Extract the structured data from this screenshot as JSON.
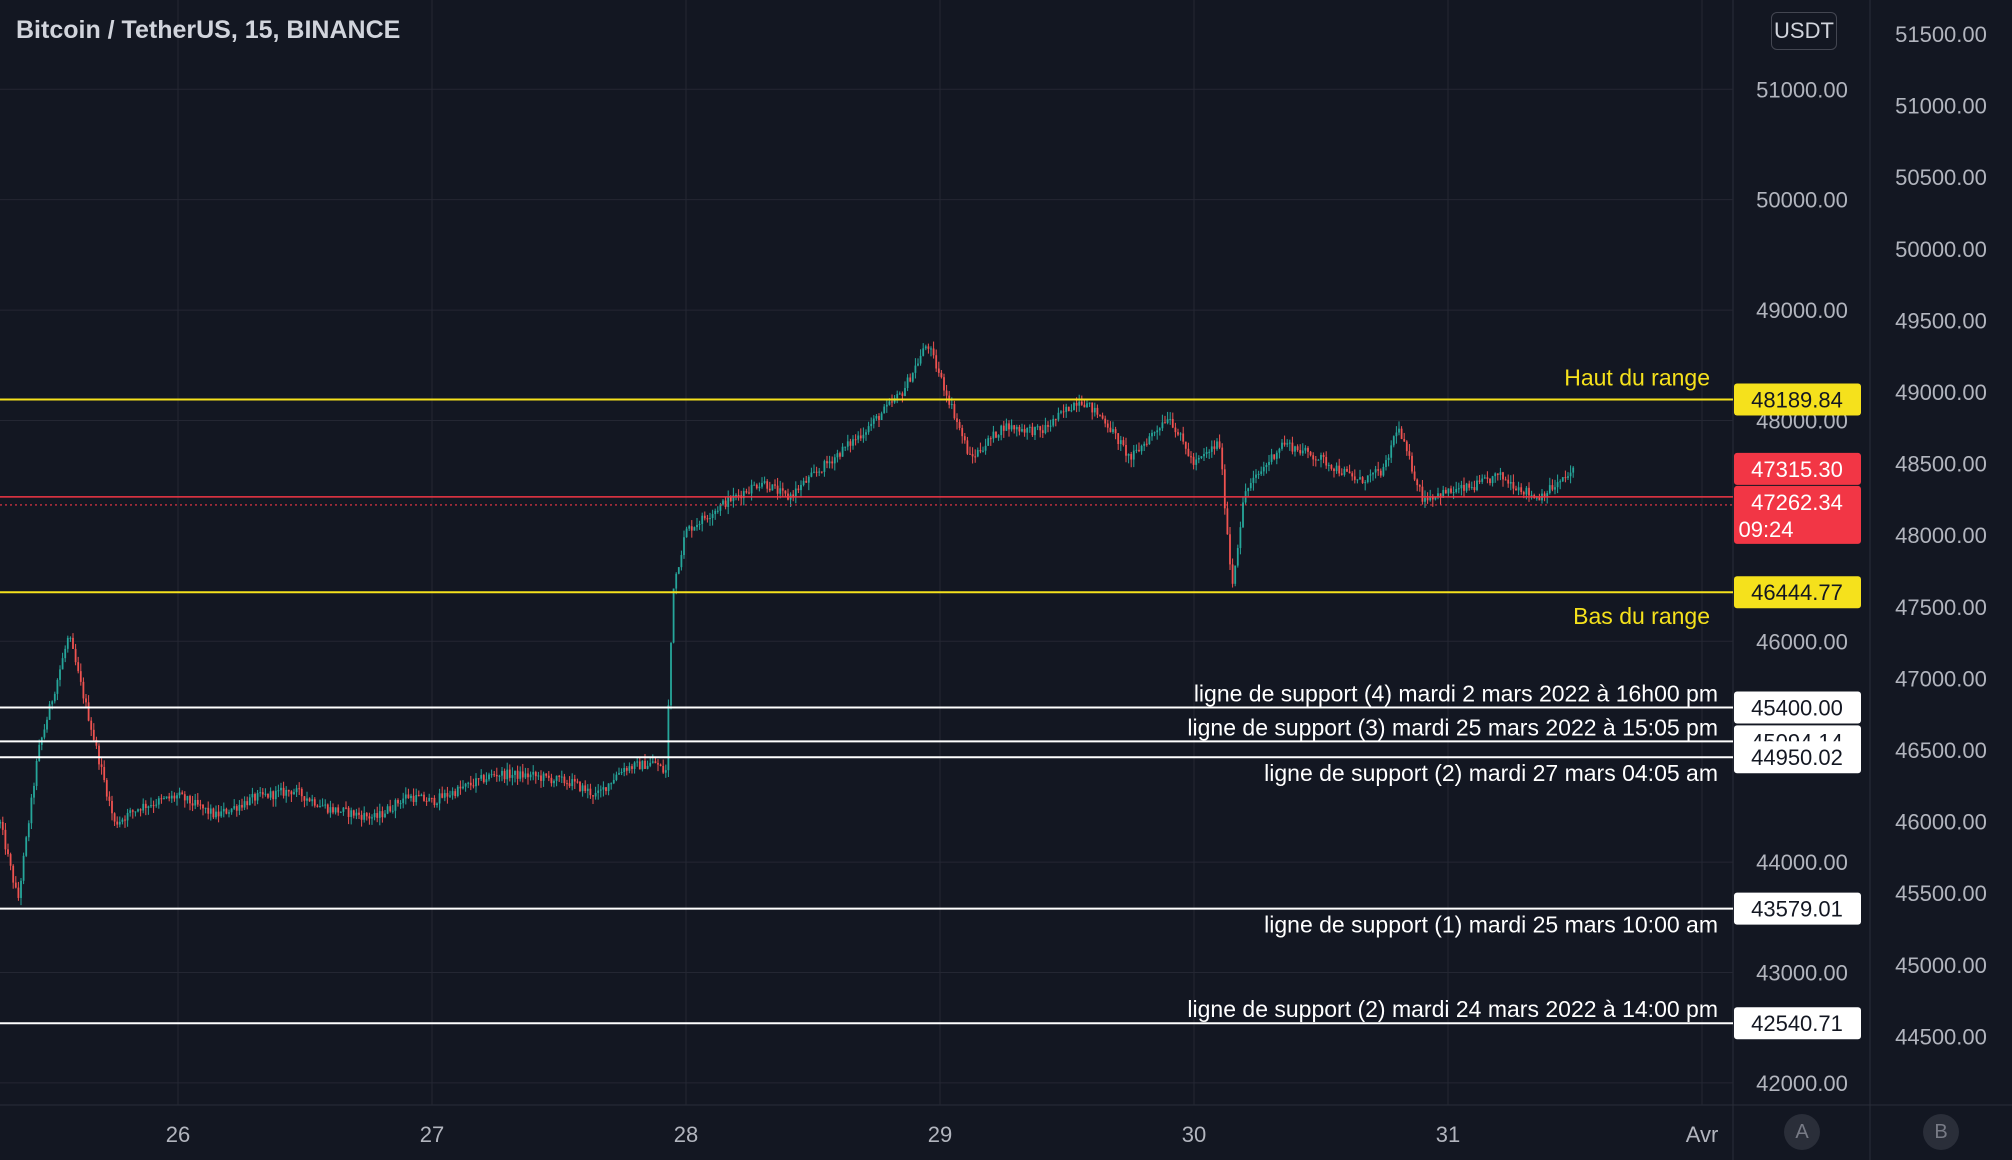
{
  "header": {
    "title": "Bitcoin / TetherUS, 15, BINANCE",
    "currency": "USDT"
  },
  "scale_buttons": {
    "a": "A",
    "b": "B"
  },
  "colors": {
    "background": "#131722",
    "grid": "#242733",
    "up": "#26a69a",
    "down": "#ef5350",
    "range_line": "#f5e11c",
    "support_line": "#ffffff",
    "price_line": "#f23645",
    "axis_text": "#b2b5be"
  },
  "chart_data": {
    "type": "candlestick",
    "x_tick_labels": [
      "26",
      "27",
      "28",
      "29",
      "30",
      "31",
      "Avr"
    ],
    "y_axis_left": {
      "ticks": [
        "51000.00",
        "50000.00",
        "49000.00",
        "48000.00",
        "46000.00",
        "44000.00",
        "43000.00",
        "42000.00"
      ],
      "ylim": [
        41800,
        51700
      ]
    },
    "y_axis_right": {
      "ticks": [
        "51500.00",
        "51000.00",
        "50500.00",
        "50000.00",
        "49500.00",
        "49000.00",
        "48500.00",
        "48000.00",
        "47500.00",
        "47000.00",
        "46500.00",
        "46000.00",
        "45500.00",
        "45000.00",
        "44500.00"
      ]
    },
    "series_path": [
      [
        25.3,
        44350
      ],
      [
        25.37,
        43650
      ],
      [
        25.45,
        45000
      ],
      [
        25.57,
        46050
      ],
      [
        25.65,
        45300
      ],
      [
        25.75,
        44350
      ],
      [
        25.85,
        44500
      ],
      [
        26.0,
        44600
      ],
      [
        26.15,
        44420
      ],
      [
        26.3,
        44580
      ],
      [
        26.45,
        44650
      ],
      [
        26.6,
        44480
      ],
      [
        26.78,
        44400
      ],
      [
        26.9,
        44600
      ],
      [
        27.0,
        44550
      ],
      [
        27.1,
        44650
      ],
      [
        27.25,
        44800
      ],
      [
        27.4,
        44780
      ],
      [
        27.55,
        44720
      ],
      [
        27.65,
        44600
      ],
      [
        27.75,
        44850
      ],
      [
        27.88,
        44900
      ],
      [
        27.92,
        44800
      ],
      [
        27.95,
        46500
      ],
      [
        28.0,
        47000
      ],
      [
        28.15,
        47250
      ],
      [
        28.3,
        47450
      ],
      [
        28.4,
        47300
      ],
      [
        28.55,
        47600
      ],
      [
        28.7,
        47900
      ],
      [
        28.85,
        48250
      ],
      [
        28.95,
        48700
      ],
      [
        29.05,
        48100
      ],
      [
        29.12,
        47650
      ],
      [
        29.25,
        47950
      ],
      [
        29.4,
        47900
      ],
      [
        29.55,
        48200
      ],
      [
        29.65,
        48000
      ],
      [
        29.75,
        47650
      ],
      [
        29.9,
        48050
      ],
      [
        30.0,
        47600
      ],
      [
        30.1,
        47800
      ],
      [
        30.15,
        46500
      ],
      [
        30.2,
        47350
      ],
      [
        30.35,
        47800
      ],
      [
        30.5,
        47650
      ],
      [
        30.65,
        47450
      ],
      [
        30.75,
        47550
      ],
      [
        30.8,
        47950
      ],
      [
        30.9,
        47300
      ],
      [
        31.0,
        47350
      ],
      [
        31.1,
        47400
      ],
      [
        31.2,
        47500
      ],
      [
        31.35,
        47300
      ],
      [
        31.45,
        47450
      ],
      [
        31.5,
        47560
      ]
    ],
    "horizontal_levels": [
      {
        "price": "48189.84",
        "label": "Haut du range",
        "kind": "range",
        "label_side": "above",
        "label_pad": 14
      },
      {
        "price": "46444.77",
        "label": "Bas du range",
        "kind": "range",
        "label_side": "below",
        "label_pad": 14
      },
      {
        "price": "45400.00",
        "label": "ligne de support (4) mardi 2 mars 2022 à 16h00 pm",
        "kind": "support",
        "label_side": "above",
        "label_pad": 6
      },
      {
        "price": "45094.14",
        "label": "ligne de support (3) mardi 25 mars 2022 à 15:05 pm",
        "kind": "support",
        "label_side": "above",
        "label_pad": 6
      },
      {
        "price": "44950.02",
        "label": "ligne de support (2) mardi 27 mars 04:05 am",
        "kind": "support",
        "label_side": "below",
        "label_pad": 6
      },
      {
        "price": "43579.01",
        "label": "ligne de support (1) mardi 25 mars 10:00 am",
        "kind": "support",
        "label_side": "below",
        "label_pad": 6
      },
      {
        "price": "42540.71",
        "label": "ligne de support (2) mardi 24 mars 2022 à 14:00 pm",
        "kind": "support",
        "label_side": "above",
        "label_pad": 6
      }
    ],
    "current_price": {
      "price": "47262.34",
      "countdown": "09:24",
      "previous": "47315.30"
    }
  }
}
